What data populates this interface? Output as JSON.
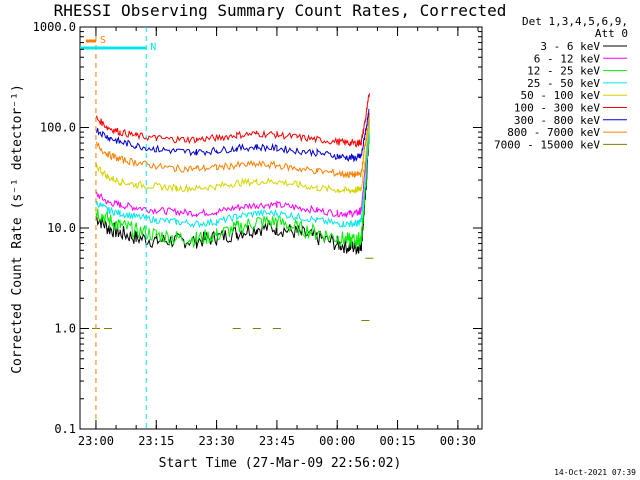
{
  "chart_data": {
    "type": "line",
    "title": "RHESSI Observing Summary Count Rates, Corrected",
    "xlabel": "Start Time (27-Mar-09 22:56:02)",
    "ylabel": "Corrected Count Rate (s⁻¹ detector⁻¹)",
    "xlim": [
      "22:56:02",
      "00:36:00"
    ],
    "ylim": [
      0.1,
      1000
    ],
    "yscale": "log",
    "x_ticks": [
      "23:00",
      "23:15",
      "23:30",
      "23:45",
      "00:00",
      "00:15",
      "00:30"
    ],
    "y_ticks": [
      "0.1",
      "1.0",
      "10.0",
      "100.0",
      "1000.0"
    ],
    "legend_header": [
      "Det 1,3,4,5,6,9,",
      "Att 0"
    ],
    "legend_position": "right, outside plot",
    "timestamp": "14-Oct-2021 07:39",
    "x": [
      "23:00",
      "23:03",
      "23:06",
      "23:10",
      "23:15",
      "23:20",
      "23:25",
      "23:30",
      "23:35",
      "23:40",
      "23:45",
      "23:50",
      "23:55",
      "00:00",
      "00:03",
      "00:05",
      "00:06",
      "00:07",
      "00:08"
    ],
    "series": [
      {
        "name": "3 - 6 keV",
        "color": "#000000",
        "values": [
          13,
          10,
          9,
          8,
          7.5,
          7.5,
          7.5,
          8,
          9,
          10,
          10,
          9,
          8,
          7,
          6.5,
          6.5,
          7,
          20,
          100
        ]
      },
      {
        "name": "6 - 12 keV",
        "color": "#ff00ff",
        "values": [
          22,
          18,
          17,
          16,
          15,
          14.5,
          14,
          14.5,
          16,
          17,
          17,
          16,
          15,
          14,
          14,
          14,
          15,
          40,
          120
        ]
      },
      {
        "name": "12 - 25 keV",
        "color": "#00ee00",
        "values": [
          15,
          12,
          10.5,
          9.5,
          8.5,
          8,
          7.8,
          8.5,
          10,
          11.5,
          11.5,
          10,
          9,
          8,
          7.5,
          7.5,
          8,
          25,
          100
        ]
      },
      {
        "name": "25 - 50 keV",
        "color": "#00e8e8",
        "values": [
          18,
          15,
          14,
          13,
          12,
          11.5,
          11,
          11.5,
          13,
          14,
          14,
          13,
          12,
          11,
          11,
          11,
          12,
          30,
          110
        ]
      },
      {
        "name": "50 - 100 keV",
        "color": "#d4d400",
        "values": [
          42,
          32,
          29,
          27,
          26,
          25,
          25,
          26,
          28,
          29,
          29,
          27,
          25,
          24,
          23.5,
          24,
          25,
          50,
          120
        ]
      },
      {
        "name": "100 - 300 keV",
        "color": "#ff0000",
        "values": [
          125,
          100,
          90,
          83,
          78,
          76,
          76,
          79,
          84,
          87,
          85,
          80,
          76,
          72,
          70,
          70,
          72,
          120,
          220
        ]
      },
      {
        "name": "300 - 800 keV",
        "color": "#0000d0",
        "values": [
          96,
          80,
          72,
          66,
          61,
          58,
          57,
          59,
          62,
          64,
          62,
          59,
          56,
          52,
          50,
          50,
          52,
          90,
          150
        ]
      },
      {
        "name": "800 - 7000 keV",
        "color": "#ff7f00",
        "values": [
          68,
          54,
          48,
          45,
          41,
          39,
          39,
          40,
          42,
          43,
          42,
          39,
          37,
          35,
          34,
          34,
          35,
          70,
          130
        ]
      },
      {
        "name": "7000 - 15000 keV",
        "color": "#808000",
        "values": [
          1,
          1,
          null,
          null,
          null,
          null,
          null,
          null,
          1,
          1,
          1,
          null,
          null,
          null,
          null,
          null,
          null,
          1.2,
          5
        ]
      }
    ],
    "flags": [
      {
        "label": "S",
        "color": "#ff7f00",
        "style": "dashed",
        "start": "22:57:30",
        "end": "23:00:00"
      },
      {
        "label": "N",
        "color": "#00e8e8",
        "style": "dashed",
        "start": "22:56:02",
        "end": "23:12:30"
      }
    ],
    "grid": false
  }
}
